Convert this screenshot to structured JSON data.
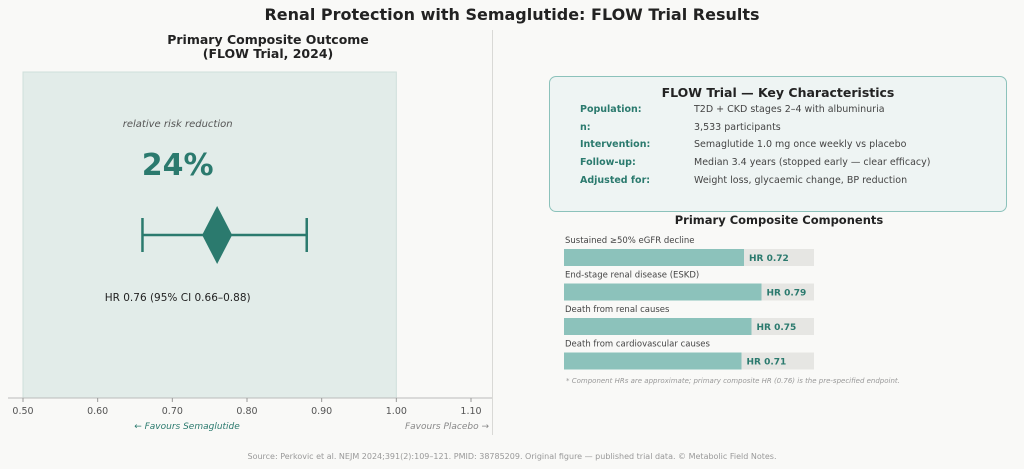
{
  "page_title": "Renal Protection with Semaglutide: FLOW Trial Results",
  "chart_data": [
    {
      "type": "forest",
      "title": "Primary Composite Outcome\n(FLOW Trial, 2024)",
      "xlim": [
        0.5,
        1.1
      ],
      "x_ticks": [
        "0.50",
        "0.60",
        "0.70",
        "0.80",
        "0.90",
        "1.00",
        "1.10"
      ],
      "grid": false,
      "shaded_range": [
        0.5,
        1.0
      ],
      "point_estimate": 0.76,
      "ci_low": 0.66,
      "ci_high": 0.88,
      "rrr_caption": "relative risk reduction",
      "rrr_value": "24%",
      "hr_label": "HR 0.76  (95% CI 0.66–0.88)",
      "favours_left": "← Favours Semaglutide",
      "favours_right": "Favours Placebo →"
    },
    {
      "type": "bar",
      "orientation": "horizontal",
      "title": "Primary Composite Components",
      "xlim": [
        0,
        1
      ],
      "categories": [
        "Sustained ≥50% eGFR decline",
        "End-stage renal disease (ESKD)",
        "Death from renal causes",
        "Death from cardiovascular causes"
      ],
      "values": [
        0.72,
        0.79,
        0.75,
        0.71
      ],
      "value_labels": [
        "HR 0.72",
        "HR 0.79",
        "HR 0.75",
        "HR 0.71"
      ],
      "footnote": "* Component HRs are approximate; primary composite HR (0.76) is the pre-specified endpoint."
    }
  ],
  "key_characteristics": {
    "title": "FLOW Trial — Key Characteristics",
    "rows": [
      {
        "label": "Population:",
        "value": "T2D + CKD stages 2–4 with albuminuria"
      },
      {
        "label": "n:",
        "value": "3,533 participants"
      },
      {
        "label": "Intervention:",
        "value": "Semaglutide 1.0 mg once weekly vs placebo"
      },
      {
        "label": "Follow-up:",
        "value": "Median 3.4 years (stopped early — clear efficacy)"
      },
      {
        "label": "Adjusted for:",
        "value": "Weight loss, glycaemic change, BP reduction"
      }
    ]
  },
  "footer": "Source: Perkovic et al. NEJM 2024;391(2):109–121. PMID: 38785209. Original figure — published trial data. © Metabolic Field Notes.",
  "colors": {
    "accent": "#2b7a6e",
    "bar": "#8cc2bb",
    "bar_track": "#e6e6e3",
    "panel_shade": "#e2ece9"
  }
}
